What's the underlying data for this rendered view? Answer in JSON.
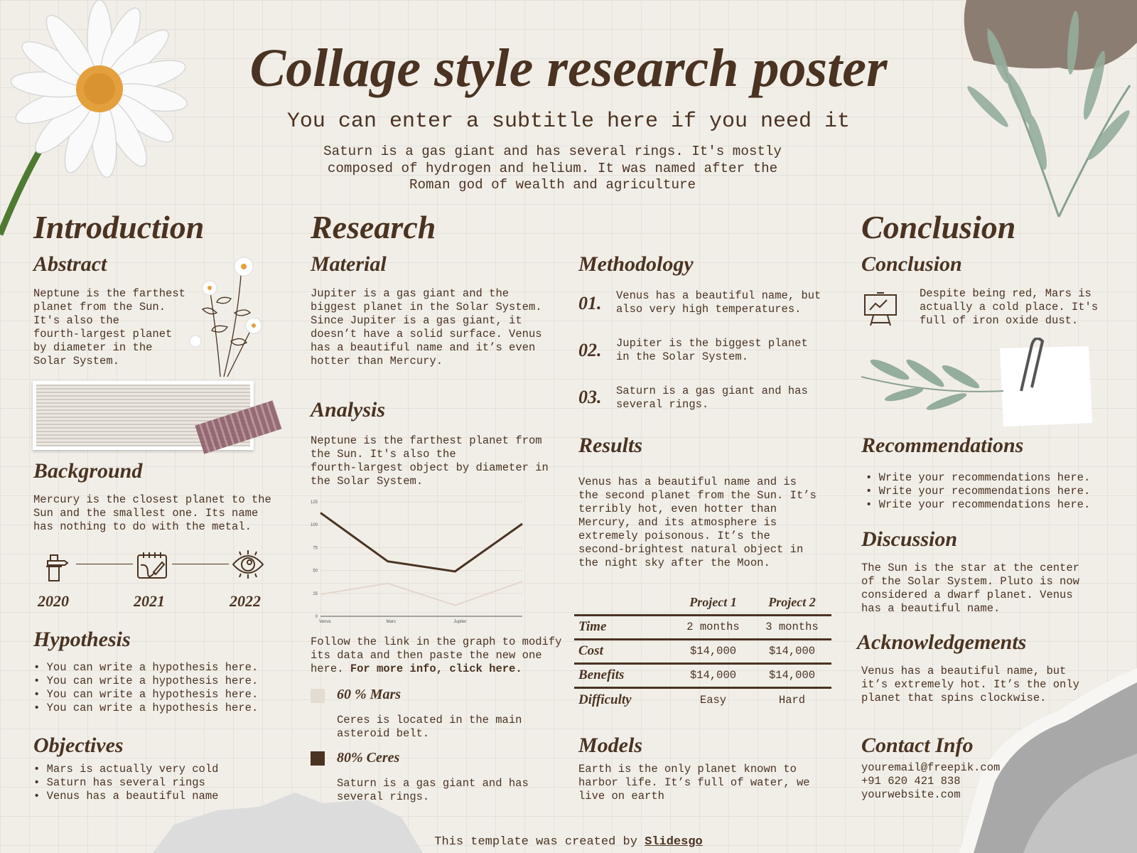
{
  "header": {
    "title": "Collage style research poster",
    "subtitle": "You can enter a subtitle here if you need it",
    "description": "Saturn is a gas giant and has several rings. It's mostly\ncomposed of hydrogen and helium. It was named after the\nRoman god of wealth and agriculture"
  },
  "introduction": {
    "heading": "Introduction",
    "abstract": {
      "heading": "Abstract",
      "text": "Neptune is the farthest\nplanet from the Sun.\nIt's also the\nfourth-largest planet\nby diameter in the\nSolar System."
    },
    "background": {
      "heading": "Background",
      "text": "Mercury is the closest planet to the\nSun and the smallest one. Its name\nhas nothing to do with the metal."
    },
    "timeline": [
      {
        "year": "2020",
        "icon": "hand-pencil-icon"
      },
      {
        "year": "2021",
        "icon": "notebook-icon"
      },
      {
        "year": "2022",
        "icon": "eye-icon"
      }
    ],
    "hypothesis": {
      "heading": "Hypothesis",
      "items": [
        "You can write a hypothesis here.",
        "You can write a hypothesis here.",
        "You can write a hypothesis here.",
        "You can write a hypothesis here."
      ]
    },
    "objectives": {
      "heading": "Objectives",
      "items": [
        "Mars is actually very cold",
        "Saturn has several rings",
        "Venus has a beautiful name"
      ]
    }
  },
  "research": {
    "heading": "Research",
    "material": {
      "heading": "Material",
      "text": "Jupiter is a gas giant and the\nbiggest planet in the Solar System.\nSince Jupiter is a gas giant, it\ndoesn’t have a solid surface. Venus\nhas a beautiful name and it’s even\nhotter than Mercury."
    },
    "analysis": {
      "heading": "Analysis",
      "text": "Neptune is the farthest planet from\nthe Sun. It's also the\nfourth-largest object by diameter in\nthe Solar System.",
      "follow_text": "Follow the link in the graph to modify\nits data and then paste the new one\nhere. ",
      "follow_link": "For more info, click here."
    },
    "legend": [
      {
        "label": "60 % Mars",
        "text": "Ceres is located in the main\nasteroid belt.",
        "color": "#e3dcd3"
      },
      {
        "label": "80% Ceres",
        "text": "Saturn is a gas giant and has\nseveral rings.",
        "color": "#4a3322"
      }
    ]
  },
  "chart_data": {
    "type": "line",
    "categories": [
      "Venus",
      "Mars",
      "Jupiter",
      ""
    ],
    "ylim": [
      0,
      125
    ],
    "yticks": [
      0,
      25,
      50,
      75,
      100,
      125
    ],
    "grid": true,
    "series": [
      {
        "values": [
          113,
          60,
          49,
          101
        ],
        "color": "#4a3322"
      },
      {
        "values": [
          24,
          36,
          12,
          38
        ],
        "color": "#e3d6cc"
      }
    ]
  },
  "methodology": {
    "heading": "Methodology",
    "steps": [
      {
        "num": "01.",
        "text": "Venus has a beautiful name, but\nalso very high temperatures."
      },
      {
        "num": "02.",
        "text": "Jupiter is the biggest planet\nin the Solar System."
      },
      {
        "num": "03.",
        "text": "Saturn is a gas giant and has\nseveral rings."
      }
    ]
  },
  "results": {
    "heading": "Results",
    "text": "Venus has a beautiful name and is\nthe second planet from the Sun. It’s\nterribly hot, even hotter than\nMercury, and its atmosphere is\nextremely poisonous. It’s the\nsecond-brightest natural object in\nthe night sky after the Moon.",
    "table": {
      "columns": [
        "Project 1",
        "Project 2"
      ],
      "rows": [
        {
          "label": "Time",
          "values": [
            "2 months",
            "3 months"
          ]
        },
        {
          "label": "Cost",
          "values": [
            "$14,000",
            "$14,000"
          ]
        },
        {
          "label": "Benefits",
          "values": [
            "$14,000",
            "$14,000"
          ]
        },
        {
          "label": "Difficulty",
          "values": [
            "Easy",
            "Hard"
          ]
        }
      ]
    }
  },
  "models": {
    "heading": "Models",
    "text": "Earth is the only planet known to\nharbor life. It’s full of water, we\nlive on earth"
  },
  "conclusion": {
    "heading": "Conclusion",
    "subheading": "Conclusion",
    "text": "Despite being red, Mars is\nactually a cold place. It's\nfull of iron oxide dust."
  },
  "recommendations": {
    "heading": "Recommendations",
    "items": [
      "Write your recommendations here.",
      "Write your recommendations here.",
      "Write your recommendations here."
    ]
  },
  "discussion": {
    "heading": "Discussion",
    "text": "The Sun is the star at the center\nof the Solar System. Pluto is now\nconsidered a dwarf planet. Venus\nhas a beautiful name."
  },
  "acknowledgements": {
    "heading": "Acknowledgements",
    "text": "Venus has a beautiful name, but\nit’s extremely hot. It’s the only\nplanet that spins clockwise."
  },
  "contact": {
    "heading": "Contact Info",
    "email": "youremail@freepik.com",
    "phone": "+91  620 421 838",
    "website": "yourwebsite.com"
  },
  "footer": {
    "text": "This template was created by ",
    "link": "Slidesgo"
  }
}
